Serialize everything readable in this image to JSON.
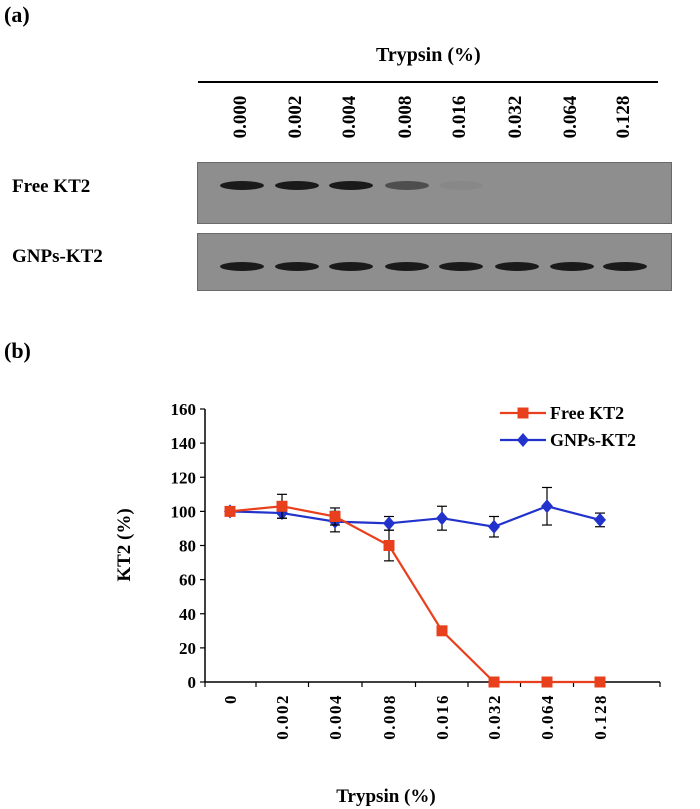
{
  "panel_a": {
    "label": "(a)",
    "header": "Trypsin  (%)",
    "concentrations": [
      "0.000",
      "0.002",
      "0.004",
      "0.008",
      "0.016",
      "0.032",
      "0.064",
      "0.128"
    ],
    "rows": [
      {
        "label": "Free KT2",
        "band_intensity": [
          1.0,
          1.0,
          1.0,
          0.55,
          0.05,
          0.0,
          0.0,
          0.0
        ]
      },
      {
        "label": "GNPs-KT2",
        "band_intensity": [
          1.0,
          1.0,
          1.0,
          1.0,
          1.0,
          1.0,
          1.0,
          1.0
        ]
      }
    ]
  },
  "panel_b": {
    "label": "(b)"
  },
  "chart_data": {
    "type": "line",
    "title": "",
    "xlabel": "Trypsin  (%)",
    "ylabel": "KT2  (%)",
    "categories": [
      "0",
      "0.002",
      "0.004",
      "0.008",
      "0.016",
      "0.032",
      "0.064",
      "0.128"
    ],
    "ylim": [
      0,
      160
    ],
    "yticks": [
      0,
      20,
      40,
      60,
      80,
      100,
      120,
      140,
      160
    ],
    "legend_position": "top-right",
    "series": [
      {
        "name": "Free KT2",
        "color": "#e8401c",
        "marker": "square",
        "values": [
          100,
          103,
          97,
          80,
          30,
          0,
          0,
          0
        ],
        "errors": [
          2,
          7,
          5,
          9,
          2,
          0,
          0,
          0
        ]
      },
      {
        "name": "GNPs-KT2",
        "color": "#2233cc",
        "marker": "diamond",
        "values": [
          100,
          99,
          94,
          93,
          96,
          91,
          103,
          95
        ],
        "errors": [
          2,
          3,
          6,
          4,
          7,
          6,
          11,
          4
        ]
      }
    ]
  }
}
